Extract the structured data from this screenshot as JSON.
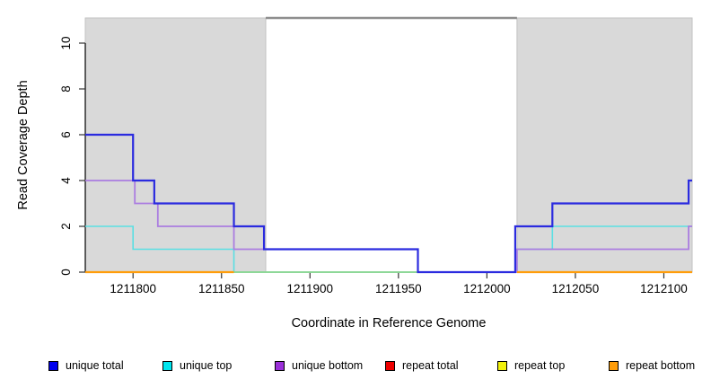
{
  "chart_data": {
    "type": "line",
    "subtype": "step-coverage",
    "title": "",
    "xlabel": "Coordinate in Reference Genome",
    "ylabel": "Read Coverage Depth",
    "x_domain": [
      1211773,
      1212116
    ],
    "ylim": [
      0,
      11.1
    ],
    "xticks": [
      1211800,
      1211850,
      1211900,
      1211950,
      1212000,
      1212050,
      1212100
    ],
    "xtick_labels": [
      "1211800",
      "1211850",
      "1211900",
      "1211950",
      "1212000",
      "1212050",
      "1212100"
    ],
    "yticks": [
      0,
      2,
      4,
      6,
      8,
      10
    ],
    "ytick_labels": [
      "0",
      "2",
      "4",
      "6",
      "8",
      "10"
    ],
    "grid": false,
    "shaded_regions": {
      "meaning": "repeat regions",
      "color": "#d9d9d9",
      "border_color": "#c2c2c2",
      "ranges": [
        [
          1211773,
          1211875
        ],
        [
          1212017,
          1212116
        ]
      ]
    },
    "gap_top_line": {
      "color": "#8e8e8e",
      "range": [
        1211875,
        1212017
      ],
      "y": "plot-top"
    },
    "series": [
      {
        "name": "unique top",
        "color": "#5adfe3",
        "width": 1.6,
        "segments": [
          [
            1211773,
            1211800,
            2
          ],
          [
            1211800,
            1211857,
            1
          ],
          [
            1211857,
            1212017,
            0
          ],
          [
            1212017,
            1212037,
            1
          ],
          [
            1212037,
            1212116,
            2
          ]
        ]
      },
      {
        "name": "baseline overlap green",
        "color": "#8fd98f",
        "width": 1.8,
        "segments": [
          [
            1211857,
            1212016,
            0
          ]
        ]
      },
      {
        "name": "unique bottom",
        "color": "#ab7de0",
        "width": 1.8,
        "segments": [
          [
            1211773,
            1211801,
            4
          ],
          [
            1211801,
            1211814,
            3
          ],
          [
            1211814,
            1211857,
            2
          ],
          [
            1211857,
            1211961,
            1
          ],
          [
            1211961,
            1212017,
            0
          ],
          [
            1212017,
            1212114,
            1
          ],
          [
            1212114,
            1212116,
            2
          ]
        ]
      },
      {
        "name": "unique total",
        "color": "#2b2bdf",
        "width": 2.2,
        "segments": [
          [
            1211773,
            1211800,
            6
          ],
          [
            1211800,
            1211812,
            4
          ],
          [
            1211812,
            1211857,
            3
          ],
          [
            1211857,
            1211874,
            2
          ],
          [
            1211874,
            1211961,
            1
          ],
          [
            1211961,
            1212016,
            0
          ],
          [
            1212016,
            1212037,
            2
          ],
          [
            1212037,
            1212114,
            3
          ],
          [
            1212114,
            1212116,
            4
          ]
        ]
      },
      {
        "name": "repeat bottom",
        "color": "#ff9d0a",
        "width": 2.2,
        "segments": [
          [
            1211773,
            1211857,
            0
          ],
          [
            1212017,
            1212116,
            0
          ]
        ]
      }
    ],
    "note": "repeat total and repeat top series are not visibly plotted (depth 0, covered by other series)",
    "legend_position": "bottom"
  },
  "legend": {
    "items": [
      {
        "label": "unique total",
        "color": "#0000ee"
      },
      {
        "label": "unique top",
        "color": "#00e5ee"
      },
      {
        "label": "unique bottom",
        "color": "#9b30d9"
      },
      {
        "label": "repeat total",
        "color": "#ee0000"
      },
      {
        "label": "repeat top",
        "color": "#f2f20c"
      },
      {
        "label": "repeat bottom",
        "color": "#ff9d0a"
      }
    ]
  }
}
